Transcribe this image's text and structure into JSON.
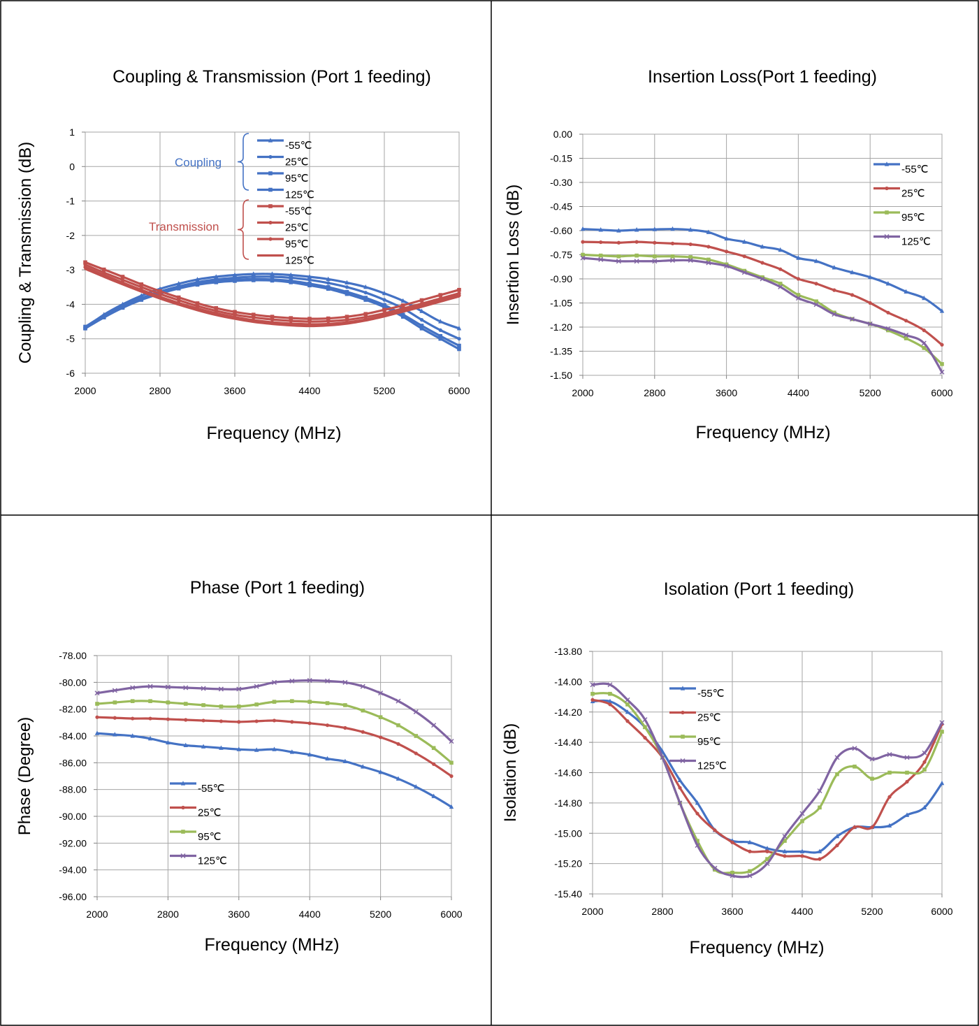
{
  "chart_data": [
    {
      "type": "line",
      "title": "Coupling & Transmission (Port 1 feeding)",
      "xlabel": "Frequency (MHz)",
      "ylabel": "Coupling & Transmission (dB)",
      "xlim": [
        2000,
        6000
      ],
      "ylim": [
        -6,
        1
      ],
      "xticks": [
        "2000",
        "2800",
        "3600",
        "4400",
        "5200",
        "6000"
      ],
      "yticks": [
        "1",
        "0",
        "-1",
        "-2",
        "-3",
        "-4",
        "-5",
        "-6"
      ],
      "grid": true,
      "legend_position": "top-center",
      "group_labels": [
        "Coupling",
        "Transmission"
      ],
      "x": [
        2000,
        2200,
        2400,
        2600,
        2800,
        3000,
        3200,
        3400,
        3600,
        3800,
        4000,
        4200,
        4400,
        4600,
        4800,
        5000,
        5200,
        5400,
        5600,
        5800,
        6000
      ],
      "series": [
        {
          "name": "-55℃",
          "group": "Coupling",
          "color": "#4472C4",
          "marker": "triangle",
          "values": [
            -4.68,
            -4.3,
            -4.0,
            -3.75,
            -3.55,
            -3.4,
            -3.28,
            -3.2,
            -3.15,
            -3.12,
            -3.12,
            -3.15,
            -3.2,
            -3.27,
            -3.37,
            -3.5,
            -3.68,
            -3.9,
            -4.2,
            -4.5,
            -4.7
          ]
        },
        {
          "name": "25℃",
          "group": "Coupling",
          "color": "#4472C4",
          "marker": "circle",
          "values": [
            -4.65,
            -4.32,
            -4.05,
            -3.82,
            -3.63,
            -3.48,
            -3.36,
            -3.28,
            -3.23,
            -3.2,
            -3.2,
            -3.23,
            -3.29,
            -3.38,
            -3.5,
            -3.66,
            -3.87,
            -4.12,
            -4.45,
            -4.75,
            -5.0
          ]
        },
        {
          "name": "95℃",
          "group": "Coupling",
          "color": "#4472C4",
          "marker": "square",
          "values": [
            -4.65,
            -4.35,
            -4.08,
            -3.85,
            -3.67,
            -3.52,
            -3.41,
            -3.34,
            -3.29,
            -3.27,
            -3.28,
            -3.32,
            -3.4,
            -3.5,
            -3.64,
            -3.81,
            -4.02,
            -4.3,
            -4.62,
            -4.92,
            -5.2
          ]
        },
        {
          "name": "125℃",
          "group": "Coupling",
          "color": "#4472C4",
          "marker": "square",
          "values": [
            -4.7,
            -4.38,
            -4.1,
            -3.87,
            -3.69,
            -3.54,
            -3.43,
            -3.36,
            -3.32,
            -3.3,
            -3.31,
            -3.36,
            -3.45,
            -3.55,
            -3.7,
            -3.87,
            -4.08,
            -4.36,
            -4.7,
            -5.0,
            -5.3
          ]
        },
        {
          "name": "-55℃",
          "group": "Transmission",
          "color": "#C0504D",
          "marker": "square",
          "values": [
            -2.78,
            -2.99,
            -3.2,
            -3.42,
            -3.62,
            -3.8,
            -3.97,
            -4.11,
            -4.22,
            -4.3,
            -4.36,
            -4.4,
            -4.42,
            -4.41,
            -4.36,
            -4.28,
            -4.16,
            -4.03,
            -3.88,
            -3.73,
            -3.58
          ]
        },
        {
          "name": "25℃",
          "group": "Transmission",
          "color": "#C0504D",
          "marker": "circle",
          "values": [
            -2.85,
            -3.08,
            -3.29,
            -3.5,
            -3.7,
            -3.88,
            -4.05,
            -4.19,
            -4.3,
            -4.38,
            -4.44,
            -4.48,
            -4.5,
            -4.49,
            -4.45,
            -4.37,
            -4.26,
            -4.12,
            -3.98,
            -3.83,
            -3.68
          ]
        },
        {
          "name": "95℃",
          "group": "Transmission",
          "color": "#C0504D",
          "marker": "circle",
          "values": [
            -2.92,
            -3.15,
            -3.37,
            -3.58,
            -3.78,
            -3.96,
            -4.12,
            -4.26,
            -4.37,
            -4.46,
            -4.52,
            -4.56,
            -4.58,
            -4.57,
            -4.52,
            -4.44,
            -4.32,
            -4.18,
            -4.04,
            -3.89,
            -3.74
          ]
        },
        {
          "name": "125℃",
          "group": "Transmission",
          "color": "#C0504D",
          "marker": "none",
          "values": [
            -2.97,
            -3.2,
            -3.42,
            -3.63,
            -3.83,
            -4.01,
            -4.17,
            -4.31,
            -4.42,
            -4.51,
            -4.57,
            -4.61,
            -4.63,
            -4.61,
            -4.56,
            -4.47,
            -4.35,
            -4.21,
            -4.07,
            -3.92,
            -3.77
          ]
        }
      ]
    },
    {
      "type": "line",
      "title": "Insertion Loss(Port 1 feeding)",
      "xlabel": "Frequency (MHz)",
      "ylabel": "Insertion Loss (dB)",
      "xlim": [
        2000,
        6000
      ],
      "ylim": [
        -1.5,
        0
      ],
      "xticks": [
        "2000",
        "2800",
        "3600",
        "4400",
        "5200",
        "6000"
      ],
      "yticks": [
        "0.00",
        "-0.15",
        "-0.30",
        "-0.45",
        "-0.60",
        "-0.75",
        "-0.90",
        "-1.05",
        "-1.20",
        "-1.35",
        "-1.50"
      ],
      "grid": true,
      "legend_position": "top-right",
      "x": [
        2000,
        2200,
        2400,
        2600,
        2800,
        3000,
        3200,
        3400,
        3600,
        3800,
        4000,
        4200,
        4400,
        4600,
        4800,
        5000,
        5200,
        5400,
        5600,
        5800,
        6000
      ],
      "series": [
        {
          "name": "-55℃",
          "color": "#4472C4",
          "marker": "triangle",
          "values": [
            -0.59,
            -0.595,
            -0.6,
            -0.595,
            -0.592,
            -0.59,
            -0.595,
            -0.61,
            -0.65,
            -0.67,
            -0.7,
            -0.72,
            -0.77,
            -0.79,
            -0.83,
            -0.86,
            -0.89,
            -0.93,
            -0.98,
            -1.02,
            -1.1
          ]
        },
        {
          "name": "25℃",
          "color": "#C0504D",
          "marker": "circle",
          "values": [
            -0.67,
            -0.672,
            -0.675,
            -0.67,
            -0.675,
            -0.68,
            -0.685,
            -0.7,
            -0.73,
            -0.76,
            -0.8,
            -0.84,
            -0.9,
            -0.93,
            -0.97,
            -1.0,
            -1.05,
            -1.11,
            -1.16,
            -1.22,
            -1.31
          ]
        },
        {
          "name": "95℃",
          "color": "#9BBB59",
          "marker": "square",
          "values": [
            -0.75,
            -0.755,
            -0.76,
            -0.755,
            -0.76,
            -0.76,
            -0.765,
            -0.78,
            -0.81,
            -0.85,
            -0.89,
            -0.93,
            -1.0,
            -1.04,
            -1.11,
            -1.15,
            -1.18,
            -1.22,
            -1.27,
            -1.33,
            -1.43
          ]
        },
        {
          "name": "125℃",
          "color": "#8064A2",
          "marker": "x",
          "values": [
            -0.77,
            -0.78,
            -0.79,
            -0.79,
            -0.79,
            -0.785,
            -0.785,
            -0.8,
            -0.82,
            -0.86,
            -0.9,
            -0.95,
            -1.02,
            -1.06,
            -1.12,
            -1.15,
            -1.18,
            -1.21,
            -1.25,
            -1.3,
            -1.48
          ]
        }
      ]
    },
    {
      "type": "line",
      "title": "Phase (Port 1 feeding)",
      "xlabel": "Frequency (MHz)",
      "ylabel": "Phase (Degree)",
      "xlim": [
        2000,
        6000
      ],
      "ylim": [
        -96,
        -78
      ],
      "xticks": [
        "2000",
        "2800",
        "3600",
        "4400",
        "5200",
        "6000"
      ],
      "yticks": [
        "-78.00",
        "-80.00",
        "-82.00",
        "-84.00",
        "-86.00",
        "-88.00",
        "-90.00",
        "-92.00",
        "-94.00",
        "-96.00"
      ],
      "grid": true,
      "legend_position": "center-left",
      "x": [
        2000,
        2200,
        2400,
        2600,
        2800,
        3000,
        3200,
        3400,
        3600,
        3800,
        4000,
        4200,
        4400,
        4600,
        4800,
        5000,
        5200,
        5400,
        5600,
        5800,
        6000
      ],
      "series": [
        {
          "name": "-55℃",
          "color": "#4472C4",
          "marker": "triangle",
          "values": [
            -83.8,
            -83.9,
            -84.0,
            -84.2,
            -84.5,
            -84.7,
            -84.8,
            -84.9,
            -85.0,
            -85.05,
            -85.0,
            -85.2,
            -85.4,
            -85.7,
            -85.9,
            -86.3,
            -86.7,
            -87.2,
            -87.8,
            -88.5,
            -89.3
          ]
        },
        {
          "name": "25℃",
          "color": "#C0504D",
          "marker": "circle",
          "values": [
            -82.6,
            -82.65,
            -82.7,
            -82.7,
            -82.75,
            -82.8,
            -82.85,
            -82.9,
            -82.95,
            -82.9,
            -82.85,
            -82.95,
            -83.05,
            -83.2,
            -83.4,
            -83.7,
            -84.1,
            -84.6,
            -85.3,
            -86.1,
            -87.0
          ]
        },
        {
          "name": "95℃",
          "color": "#9BBB59",
          "marker": "square",
          "values": [
            -81.6,
            -81.5,
            -81.4,
            -81.4,
            -81.5,
            -81.6,
            -81.7,
            -81.8,
            -81.8,
            -81.65,
            -81.45,
            -81.4,
            -81.45,
            -81.55,
            -81.7,
            -82.1,
            -82.6,
            -83.2,
            -84.0,
            -84.9,
            -86.0
          ]
        },
        {
          "name": "125℃",
          "color": "#8064A2",
          "marker": "x",
          "values": [
            -80.8,
            -80.6,
            -80.4,
            -80.3,
            -80.35,
            -80.4,
            -80.45,
            -80.5,
            -80.5,
            -80.3,
            -80.0,
            -79.9,
            -79.85,
            -79.9,
            -80.0,
            -80.3,
            -80.8,
            -81.4,
            -82.2,
            -83.2,
            -84.4
          ]
        }
      ]
    },
    {
      "type": "line",
      "title": "Isolation (Port 1 feeding)",
      "xlabel": "Frequency (MHz)",
      "ylabel": "Isolation (dB)",
      "xlim": [
        2000,
        6000
      ],
      "ylim": [
        -15.4,
        -13.8
      ],
      "xticks": [
        "2000",
        "2800",
        "3600",
        "4400",
        "5200",
        "6000"
      ],
      "yticks": [
        "-13.80",
        "-14.00",
        "-14.20",
        "-14.40",
        "-14.60",
        "-14.80",
        "-15.00",
        "-15.20",
        "-15.40"
      ],
      "grid": true,
      "legend_position": "top-left",
      "x": [
        2000,
        2200,
        2400,
        2600,
        2800,
        3000,
        3200,
        3400,
        3600,
        3800,
        4000,
        4200,
        4400,
        4600,
        4800,
        5000,
        5200,
        5400,
        5600,
        5800,
        6000
      ],
      "series": [
        {
          "name": "-55℃",
          "color": "#4472C4",
          "marker": "triangle",
          "values": [
            -14.13,
            -14.13,
            -14.2,
            -14.3,
            -14.46,
            -14.65,
            -14.8,
            -14.98,
            -15.05,
            -15.06,
            -15.1,
            -15.12,
            -15.12,
            -15.12,
            -15.02,
            -14.96,
            -14.96,
            -14.95,
            -14.88,
            -14.83,
            -14.67
          ]
        },
        {
          "name": "25℃",
          "color": "#C0504D",
          "marker": "circle",
          "values": [
            -14.12,
            -14.15,
            -14.26,
            -14.37,
            -14.5,
            -14.7,
            -14.87,
            -14.98,
            -15.06,
            -15.12,
            -15.12,
            -15.15,
            -15.15,
            -15.17,
            -15.08,
            -14.96,
            -14.96,
            -14.76,
            -14.66,
            -14.53,
            -14.28
          ]
        },
        {
          "name": "95℃",
          "color": "#9BBB59",
          "marker": "square",
          "values": [
            -14.08,
            -14.08,
            -14.15,
            -14.3,
            -14.5,
            -14.8,
            -15.05,
            -15.24,
            -15.26,
            -15.25,
            -15.17,
            -15.05,
            -14.92,
            -14.83,
            -14.61,
            -14.56,
            -14.64,
            -14.6,
            -14.6,
            -14.58,
            -14.33
          ]
        },
        {
          "name": "125℃",
          "color": "#8064A2",
          "marker": "x",
          "values": [
            -14.02,
            -14.02,
            -14.12,
            -14.25,
            -14.5,
            -14.8,
            -15.08,
            -15.23,
            -15.28,
            -15.28,
            -15.2,
            -15.02,
            -14.87,
            -14.72,
            -14.5,
            -14.44,
            -14.51,
            -14.48,
            -14.5,
            -14.47,
            -14.27
          ]
        }
      ]
    }
  ]
}
